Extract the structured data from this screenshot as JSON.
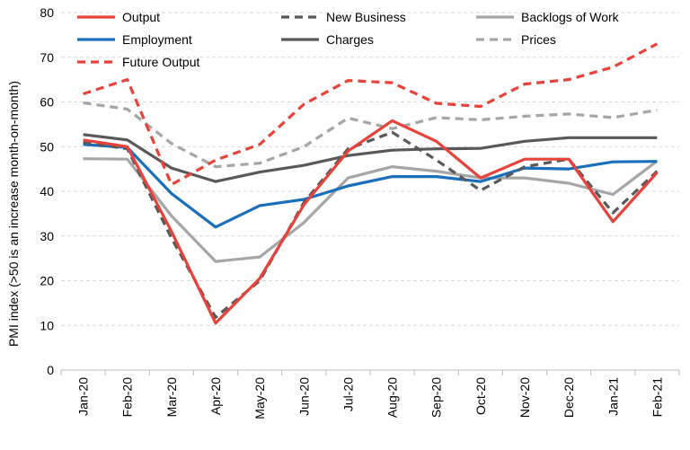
{
  "chart_data": {
    "type": "line",
    "ylabel": "PMI index (>50 is an increase month-on-month)",
    "ylim": [
      0,
      80
    ],
    "yticks": [
      0,
      10,
      20,
      30,
      40,
      50,
      60,
      70,
      80
    ],
    "grid": "horizontal-dashed",
    "legend_position": "top, inside plot",
    "categories": [
      "Jan-20",
      "Feb-20",
      "Mar-20",
      "Apr-20",
      "May-20",
      "Jun-20",
      "Jul-20",
      "Aug-20",
      "Sep-20",
      "Oct-20",
      "Nov-20",
      "Dec-20",
      "Jan-21",
      "Feb-21"
    ],
    "series": [
      {
        "name": "Output",
        "color": "#e8423a",
        "dash": "solid",
        "values": [
          51.5,
          50.0,
          31.0,
          10.5,
          20.5,
          37.0,
          49.0,
          55.8,
          51.2,
          43.0,
          47.2,
          47.2,
          33.2,
          44.2
        ]
      },
      {
        "name": "New Business",
        "color": "#595959",
        "dash": "dashed",
        "values": [
          51.0,
          49.5,
          29.5,
          11.8,
          20.0,
          37.5,
          49.5,
          53.2,
          47.0,
          40.2,
          45.5,
          47.2,
          35.2,
          44.5
        ]
      },
      {
        "name": "Backlogs of Work",
        "color": "#a6a6a6",
        "dash": "solid",
        "values": [
          47.3,
          47.2,
          34.5,
          24.3,
          25.3,
          33.0,
          43.0,
          45.5,
          44.5,
          43.0,
          43.0,
          41.8,
          39.3,
          46.8
        ]
      },
      {
        "name": "Employment",
        "color": "#1a6fbd",
        "dash": "solid",
        "values": [
          50.5,
          49.8,
          39.5,
          32.0,
          36.8,
          38.2,
          41.2,
          43.3,
          43.3,
          42.2,
          45.2,
          45.0,
          46.6,
          46.7
        ]
      },
      {
        "name": "Charges",
        "color": "#595959",
        "dash": "solid",
        "values": [
          52.7,
          51.5,
          45.2,
          42.2,
          44.3,
          45.8,
          48.0,
          49.2,
          49.5,
          49.6,
          51.2,
          52.0,
          52.0,
          52.0
        ]
      },
      {
        "name": "Prices",
        "color": "#a6a6a6",
        "dash": "dashed",
        "values": [
          59.8,
          58.4,
          50.7,
          45.5,
          46.3,
          50.0,
          56.4,
          54.0,
          56.5,
          56.0,
          56.8,
          57.3,
          56.5,
          58.2
        ]
      },
      {
        "name": "Future Output",
        "color": "#e8423a",
        "dash": "dashed",
        "values": [
          61.8,
          65.0,
          41.5,
          47.0,
          50.5,
          59.5,
          64.8,
          64.3,
          59.7,
          59.0,
          64.0,
          65.0,
          67.8,
          73.0
        ]
      }
    ]
  }
}
